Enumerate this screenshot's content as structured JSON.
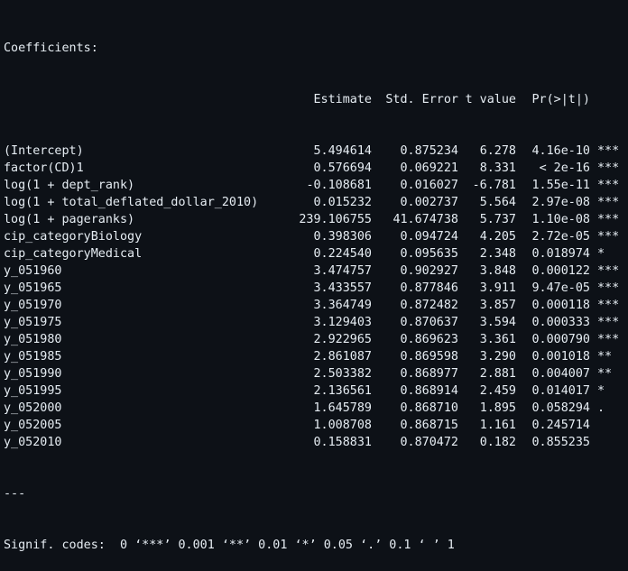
{
  "title": "Coefficients:",
  "headers": {
    "estimate": "Estimate",
    "std_error": "Std. Error",
    "t_value": "t value",
    "p_value": "Pr(>|t|)"
  },
  "rows": [
    {
      "term": "(Intercept)",
      "estimate": "5.494614",
      "se": "0.875234",
      "t": "6.278",
      "p": "4.16e-10",
      "sig": "***"
    },
    {
      "term": "factor(CD)1",
      "estimate": "0.576694",
      "se": "0.069221",
      "t": "8.331",
      "p": "< 2e-16",
      "sig": "***"
    },
    {
      "term": "log(1 + dept_rank)",
      "estimate": "-0.108681",
      "se": "0.016027",
      "t": "-6.781",
      "p": "1.55e-11",
      "sig": "***"
    },
    {
      "term": "log(1 + total_deflated_dollar_2010)",
      "estimate": "0.015232",
      "se": "0.002737",
      "t": "5.564",
      "p": "2.97e-08",
      "sig": "***"
    },
    {
      "term": "log(1 + pageranks)",
      "estimate": "239.106755",
      "se": "41.674738",
      "t": "5.737",
      "p": "1.10e-08",
      "sig": "***"
    },
    {
      "term": "cip_categoryBiology",
      "estimate": "0.398306",
      "se": "0.094724",
      "t": "4.205",
      "p": "2.72e-05",
      "sig": "***"
    },
    {
      "term": "cip_categoryMedical",
      "estimate": "0.224540",
      "se": "0.095635",
      "t": "2.348",
      "p": "0.018974",
      "sig": "*"
    },
    {
      "term": "y_051960",
      "estimate": "3.474757",
      "se": "0.902927",
      "t": "3.848",
      "p": "0.000122",
      "sig": "***"
    },
    {
      "term": "y_051965",
      "estimate": "3.433557",
      "se": "0.877846",
      "t": "3.911",
      "p": "9.47e-05",
      "sig": "***"
    },
    {
      "term": "y_051970",
      "estimate": "3.364749",
      "se": "0.872482",
      "t": "3.857",
      "p": "0.000118",
      "sig": "***"
    },
    {
      "term": "y_051975",
      "estimate": "3.129403",
      "se": "0.870637",
      "t": "3.594",
      "p": "0.000333",
      "sig": "***"
    },
    {
      "term": "y_051980",
      "estimate": "2.922965",
      "se": "0.869623",
      "t": "3.361",
      "p": "0.000790",
      "sig": "***"
    },
    {
      "term": "y_051985",
      "estimate": "2.861087",
      "se": "0.869598",
      "t": "3.290",
      "p": "0.001018",
      "sig": "**"
    },
    {
      "term": "y_051990",
      "estimate": "2.503382",
      "se": "0.868977",
      "t": "2.881",
      "p": "0.004007",
      "sig": "**"
    },
    {
      "term": "y_051995",
      "estimate": "2.136561",
      "se": "0.868914",
      "t": "2.459",
      "p": "0.014017",
      "sig": "*"
    },
    {
      "term": "y_052000",
      "estimate": "1.645789",
      "se": "0.868710",
      "t": "1.895",
      "p": "0.058294",
      "sig": "."
    },
    {
      "term": "y_052005",
      "estimate": "1.008708",
      "se": "0.868715",
      "t": "1.161",
      "p": "0.245714",
      "sig": ""
    },
    {
      "term": "y_052010",
      "estimate": "0.158831",
      "se": "0.870472",
      "t": "0.182",
      "p": "0.855235",
      "sig": ""
    }
  ],
  "separator": "---",
  "signif_codes": "Signif. codes:  0 ‘***’ 0.001 ‘**’ 0.01 ‘*’ 0.05 ‘.’ 0.1 ‘ ’ 1",
  "colors": {
    "background": "#0d1117",
    "text": "#e6edf3"
  }
}
